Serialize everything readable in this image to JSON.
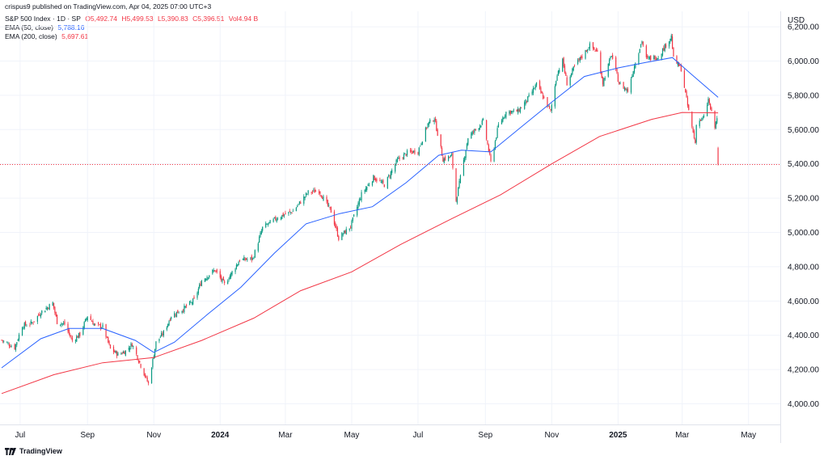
{
  "header": {
    "published": "crispus9 published on TradingView.com, Apr 04, 2025 07:00 UTC+3",
    "symbol": "S&P 500 Index · 1D · SP",
    "ohlc": {
      "o": "O5,492.74",
      "h": "H5,499.53",
      "l": "L5,390.83",
      "c": "C5,396.51",
      "vol": "Vol4.94 B"
    },
    "ema50_label": "EMA (50, close)",
    "ema50_value": "5,788.16",
    "ema200_label": "EMA (200, close)",
    "ema200_value": "5,697.61"
  },
  "footer": {
    "brand": "TradingView"
  },
  "colors": {
    "up": "#089981",
    "down": "#f23645",
    "ema50": "#2962ff",
    "ema200": "#f23645",
    "grid": "#f0f3fa"
  },
  "chart_data": {
    "type": "candlestick",
    "currency_label": "USD",
    "y_ticks": [
      4000,
      4200,
      4400,
      4600,
      4800,
      5000,
      5200,
      5400,
      5600,
      5800,
      6000,
      6200
    ],
    "y_tick_labels": [
      "4,000.00",
      "4,200.00",
      "4,400.00",
      "4,600.00",
      "4,800.00",
      "5,000.00",
      "5,200.00",
      "5,400.00",
      "5,600.00",
      "5,800.00",
      "6,000.00",
      "6,200.00"
    ],
    "ylim": [
      3880,
      6290
    ],
    "x_ticks": [
      {
        "label": "Jul",
        "month": "2023-07",
        "bold": false
      },
      {
        "label": "Sep",
        "month": "2023-09",
        "bold": false
      },
      {
        "label": "Nov",
        "month": "2023-11",
        "bold": false
      },
      {
        "label": "2024",
        "month": "2024-01",
        "bold": true
      },
      {
        "label": "Mar",
        "month": "2024-03",
        "bold": false
      },
      {
        "label": "May",
        "month": "2024-05",
        "bold": false
      },
      {
        "label": "Jul",
        "month": "2024-07",
        "bold": false
      },
      {
        "label": "Sep",
        "month": "2024-09",
        "bold": false
      },
      {
        "label": "Nov",
        "month": "2024-11",
        "bold": false
      },
      {
        "label": "2025",
        "month": "2025-01",
        "bold": true
      },
      {
        "label": "Mar",
        "month": "2025-03",
        "bold": false
      },
      {
        "label": "May",
        "month": "2025-05",
        "bold": false
      }
    ],
    "last_price": 5396.51,
    "series_close": [
      {
        "date": "2023-06-14",
        "close": 4372
      },
      {
        "date": "2023-06-26",
        "close": 4328
      },
      {
        "date": "2023-07-03",
        "close": 4455
      },
      {
        "date": "2023-07-12",
        "close": 4472
      },
      {
        "date": "2023-07-20",
        "close": 4534
      },
      {
        "date": "2023-07-31",
        "close": 4588
      },
      {
        "date": "2023-08-04",
        "close": 4478
      },
      {
        "date": "2023-08-11",
        "close": 4464
      },
      {
        "date": "2023-08-18",
        "close": 4369
      },
      {
        "date": "2023-08-25",
        "close": 4405
      },
      {
        "date": "2023-09-01",
        "close": 4515
      },
      {
        "date": "2023-09-08",
        "close": 4457
      },
      {
        "date": "2023-09-15",
        "close": 4450
      },
      {
        "date": "2023-09-22",
        "close": 4320
      },
      {
        "date": "2023-09-29",
        "close": 4288
      },
      {
        "date": "2023-10-06",
        "close": 4308
      },
      {
        "date": "2023-10-12",
        "close": 4349
      },
      {
        "date": "2023-10-20",
        "close": 4224
      },
      {
        "date": "2023-10-27",
        "close": 4117
      },
      {
        "date": "2023-11-03",
        "close": 4358
      },
      {
        "date": "2023-11-10",
        "close": 4415
      },
      {
        "date": "2023-11-17",
        "close": 4514
      },
      {
        "date": "2023-11-28",
        "close": 4554
      },
      {
        "date": "2023-12-08",
        "close": 4604
      },
      {
        "date": "2023-12-15",
        "close": 4719
      },
      {
        "date": "2023-12-27",
        "close": 4781
      },
      {
        "date": "2024-01-05",
        "close": 4697
      },
      {
        "date": "2024-01-19",
        "close": 4840
      },
      {
        "date": "2024-01-31",
        "close": 4846
      },
      {
        "date": "2024-02-09",
        "close": 5027
      },
      {
        "date": "2024-02-23",
        "close": 5088
      },
      {
        "date": "2024-03-08",
        "close": 5124
      },
      {
        "date": "2024-03-22",
        "close": 5234
      },
      {
        "date": "2024-04-01",
        "close": 5243
      },
      {
        "date": "2024-04-12",
        "close": 5123
      },
      {
        "date": "2024-04-19",
        "close": 4967
      },
      {
        "date": "2024-04-30",
        "close": 5036
      },
      {
        "date": "2024-05-10",
        "close": 5223
      },
      {
        "date": "2024-05-21",
        "close": 5321
      },
      {
        "date": "2024-05-31",
        "close": 5277
      },
      {
        "date": "2024-06-12",
        "close": 5421
      },
      {
        "date": "2024-06-21",
        "close": 5464
      },
      {
        "date": "2024-07-01",
        "close": 5475
      },
      {
        "date": "2024-07-10",
        "close": 5633
      },
      {
        "date": "2024-07-16",
        "close": 5667
      },
      {
        "date": "2024-07-24",
        "close": 5427
      },
      {
        "date": "2024-08-01",
        "close": 5446
      },
      {
        "date": "2024-08-05",
        "close": 5186
      },
      {
        "date": "2024-08-16",
        "close": 5554
      },
      {
        "date": "2024-08-30",
        "close": 5648
      },
      {
        "date": "2024-09-06",
        "close": 5408
      },
      {
        "date": "2024-09-13",
        "close": 5626
      },
      {
        "date": "2024-09-20",
        "close": 5702
      },
      {
        "date": "2024-10-01",
        "close": 5708
      },
      {
        "date": "2024-10-10",
        "close": 5780
      },
      {
        "date": "2024-10-18",
        "close": 5864
      },
      {
        "date": "2024-10-31",
        "close": 5705
      },
      {
        "date": "2024-11-06",
        "close": 5929
      },
      {
        "date": "2024-11-11",
        "close": 6001
      },
      {
        "date": "2024-11-15",
        "close": 5870
      },
      {
        "date": "2024-11-22",
        "close": 5969
      },
      {
        "date": "2024-12-06",
        "close": 6090
      },
      {
        "date": "2024-12-13",
        "close": 6051
      },
      {
        "date": "2024-12-18",
        "close": 5872
      },
      {
        "date": "2024-12-26",
        "close": 6037
      },
      {
        "date": "2025-01-02",
        "close": 5868
      },
      {
        "date": "2025-01-10",
        "close": 5827
      },
      {
        "date": "2025-01-17",
        "close": 5997
      },
      {
        "date": "2025-01-23",
        "close": 6118
      },
      {
        "date": "2025-01-27",
        "close": 6012
      },
      {
        "date": "2025-02-07",
        "close": 6026
      },
      {
        "date": "2025-02-19",
        "close": 6144
      },
      {
        "date": "2025-02-21",
        "close": 6013
      },
      {
        "date": "2025-02-28",
        "close": 5955
      },
      {
        "date": "2025-03-06",
        "close": 5739
      },
      {
        "date": "2025-03-10",
        "close": 5614
      },
      {
        "date": "2025-03-13",
        "close": 5521
      },
      {
        "date": "2025-03-14",
        "close": 5639
      },
      {
        "date": "2025-03-21",
        "close": 5668
      },
      {
        "date": "2025-03-25",
        "close": 5777
      },
      {
        "date": "2025-03-31",
        "close": 5612
      },
      {
        "date": "2025-04-02",
        "close": 5671
      },
      {
        "date": "2025-04-03",
        "close": 5396.51
      }
    ],
    "ema50": [
      {
        "date": "2023-06-14",
        "value": 4210
      },
      {
        "date": "2023-07-20",
        "value": 4380
      },
      {
        "date": "2023-08-15",
        "value": 4440
      },
      {
        "date": "2023-09-15",
        "value": 4440
      },
      {
        "date": "2023-10-15",
        "value": 4370
      },
      {
        "date": "2023-11-01",
        "value": 4300
      },
      {
        "date": "2023-11-20",
        "value": 4360
      },
      {
        "date": "2023-12-20",
        "value": 4520
      },
      {
        "date": "2024-01-20",
        "value": 4680
      },
      {
        "date": "2024-02-20",
        "value": 4880
      },
      {
        "date": "2024-03-20",
        "value": 5050
      },
      {
        "date": "2024-04-20",
        "value": 5110
      },
      {
        "date": "2024-05-20",
        "value": 5150
      },
      {
        "date": "2024-06-20",
        "value": 5290
      },
      {
        "date": "2024-07-20",
        "value": 5450
      },
      {
        "date": "2024-08-10",
        "value": 5480
      },
      {
        "date": "2024-09-06",
        "value": 5470
      },
      {
        "date": "2024-10-01",
        "value": 5600
      },
      {
        "date": "2024-11-01",
        "value": 5760
      },
      {
        "date": "2024-12-01",
        "value": 5910
      },
      {
        "date": "2025-01-01",
        "value": 5960
      },
      {
        "date": "2025-01-25",
        "value": 5990
      },
      {
        "date": "2025-02-20",
        "value": 6020
      },
      {
        "date": "2025-03-10",
        "value": 5920
      },
      {
        "date": "2025-04-03",
        "value": 5788.16
      }
    ],
    "ema200": [
      {
        "date": "2023-06-14",
        "value": 4060
      },
      {
        "date": "2023-08-01",
        "value": 4170
      },
      {
        "date": "2023-09-15",
        "value": 4240
      },
      {
        "date": "2023-11-01",
        "value": 4270
      },
      {
        "date": "2023-12-15",
        "value": 4370
      },
      {
        "date": "2024-02-01",
        "value": 4500
      },
      {
        "date": "2024-03-15",
        "value": 4660
      },
      {
        "date": "2024-05-01",
        "value": 4770
      },
      {
        "date": "2024-06-15",
        "value": 4930
      },
      {
        "date": "2024-08-01",
        "value": 5080
      },
      {
        "date": "2024-09-15",
        "value": 5220
      },
      {
        "date": "2024-11-01",
        "value": 5400
      },
      {
        "date": "2024-12-15",
        "value": 5560
      },
      {
        "date": "2025-02-01",
        "value": 5660
      },
      {
        "date": "2025-03-01",
        "value": 5700
      },
      {
        "date": "2025-04-03",
        "value": 5697.61
      }
    ]
  }
}
